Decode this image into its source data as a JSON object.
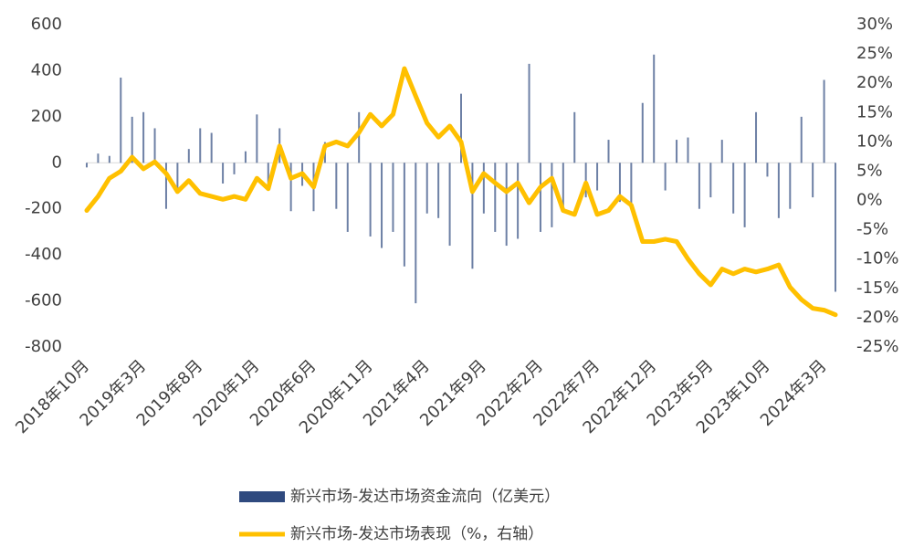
{
  "chart_data": {
    "type": "bar_line",
    "categories": [
      "2018年10月",
      null,
      null,
      null,
      null,
      "2019年3月",
      null,
      null,
      null,
      null,
      "2019年8月",
      null,
      null,
      null,
      null,
      "2020年1月",
      null,
      null,
      null,
      null,
      "2020年6月",
      null,
      null,
      null,
      null,
      "2020年11月",
      null,
      null,
      null,
      null,
      "2021年4月",
      null,
      null,
      null,
      null,
      "2021年9月",
      null,
      null,
      null,
      null,
      "2022年2月",
      null,
      null,
      null,
      null,
      "2022年7月",
      null,
      null,
      null,
      null,
      "2022年12月",
      null,
      null,
      null,
      null,
      "2023年5月",
      null,
      null,
      null,
      null,
      "2023年10月",
      null,
      null,
      null,
      null,
      "2024年3月",
      null
    ],
    "series": [
      {
        "name": "新兴市场-发达市场资金流向（亿美元）",
        "type": "bar",
        "color": "#2f4a7f",
        "axis": "y",
        "values": [
          -20,
          40,
          30,
          370,
          200,
          220,
          150,
          -200,
          -120,
          60,
          150,
          130,
          -90,
          -50,
          50,
          210,
          -100,
          150,
          -210,
          -100,
          -210,
          90,
          -200,
          -300,
          220,
          -320,
          -370,
          -300,
          -450,
          -610,
          -220,
          -240,
          -360,
          300,
          -460,
          -220,
          -300,
          -360,
          -330,
          430,
          -300,
          -280,
          -200,
          220,
          -150,
          -120,
          100,
          -170,
          -200,
          260,
          470,
          -120,
          100,
          110,
          -200,
          -150,
          100,
          -220,
          -280,
          220,
          -60,
          -240,
          -200,
          200,
          -150,
          360,
          -560
        ]
      },
      {
        "name": "新兴市场-发达市场表现（%，右轴）",
        "type": "line",
        "color": "#ffc000",
        "axis": "y2",
        "values": [
          -1.7,
          0.7,
          3.8,
          5,
          7.4,
          5.4,
          6.6,
          4.6,
          1.5,
          3.4,
          1.2,
          0.7,
          0.2,
          0.7,
          0.2,
          3.8,
          2,
          9.3,
          3.8,
          4.6,
          2.3,
          9.3,
          10,
          9.3,
          11.6,
          14.7,
          12.7,
          14.7,
          22.5,
          17.8,
          13.2,
          10.8,
          12.7,
          10,
          1.5,
          4.6,
          3,
          1.5,
          3,
          -0.4,
          2.3,
          3.8,
          -1.7,
          -2.4,
          3,
          -2.4,
          -1.7,
          0.7,
          -0.8,
          -7,
          -7,
          -6.6,
          -7,
          -10,
          -12.5,
          -14.4,
          -11.7,
          -12.5,
          -11.7,
          -12.2,
          -11.7,
          -11,
          -14.8,
          -16.9,
          -18.4,
          -18.7,
          -19.5
        ]
      }
    ],
    "ylim": [
      -800,
      600
    ],
    "yticks": [
      -800,
      -600,
      -400,
      -200,
      0,
      200,
      400,
      600
    ],
    "y2lim": [
      -25,
      30
    ],
    "y2ticks": [
      {
        "value": -25,
        "label": "-25%"
      },
      {
        "value": -20,
        "label": "-20%"
      },
      {
        "value": -15,
        "label": "-15%"
      },
      {
        "value": -10,
        "label": "-10%"
      },
      {
        "value": -5,
        "label": "-5%"
      },
      {
        "value": 0,
        "label": "0%"
      },
      {
        "value": 5,
        "label": "5%"
      },
      {
        "value": 10,
        "label": "10%"
      },
      {
        "value": 15,
        "label": "15%"
      },
      {
        "value": 20,
        "label": "20%"
      },
      {
        "value": 25,
        "label": "25%"
      },
      {
        "value": 30,
        "label": "30%"
      }
    ],
    "legend": "bottom"
  }
}
